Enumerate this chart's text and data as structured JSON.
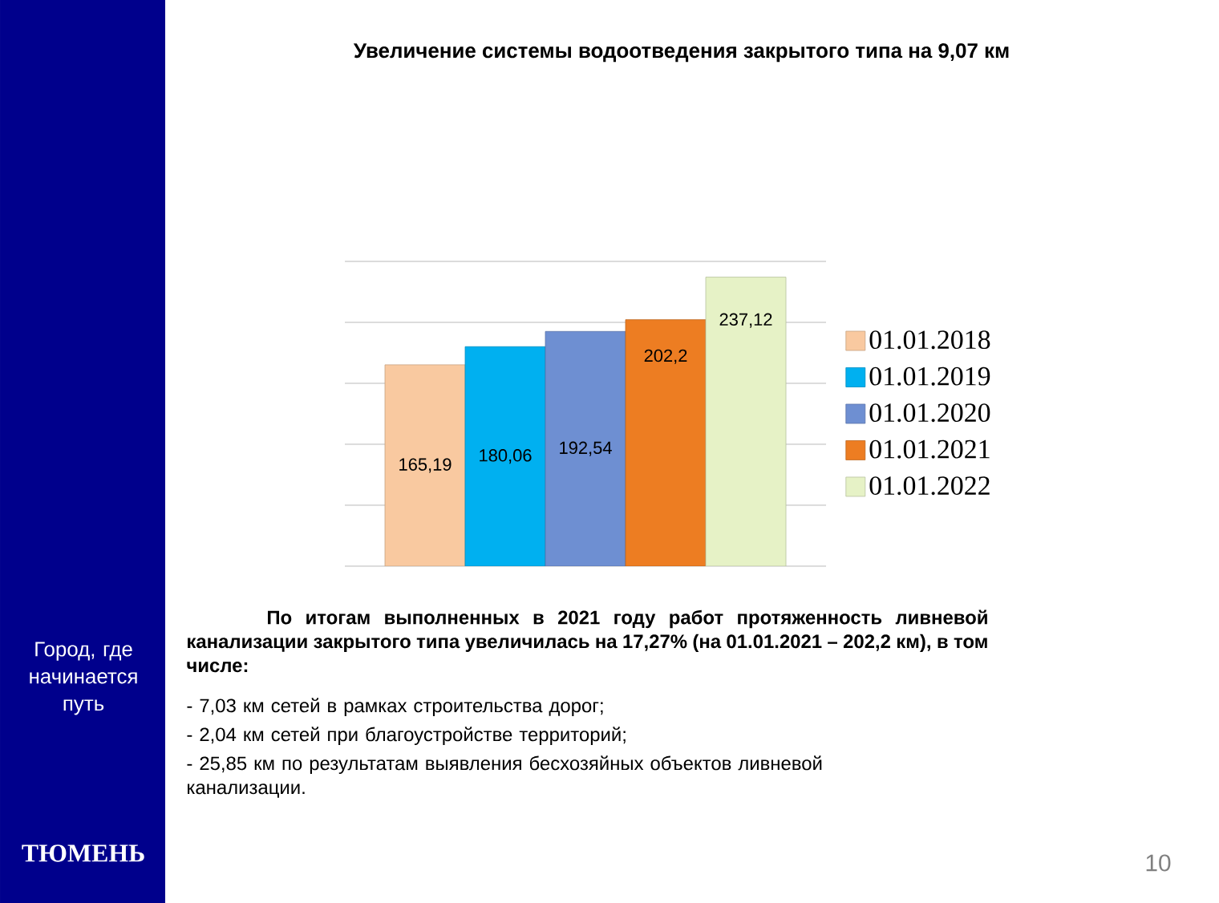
{
  "chart_data": {
    "type": "bar",
    "title": "Увеличение системы водоотведения закрытого типа на 9,07 км",
    "categories": [
      null
    ],
    "series": [
      {
        "name": "01.01.2018",
        "color": "#f9c9a0",
        "values": [
          165.19
        ],
        "value_labels": [
          "165,19"
        ]
      },
      {
        "name": "01.01.2019",
        "color": "#00b0f0",
        "values": [
          180.06
        ],
        "value_labels": [
          "180,06"
        ]
      },
      {
        "name": "01.01.2020",
        "color": "#6e8fd2",
        "values": [
          192.54
        ],
        "value_labels": [
          "192,54"
        ]
      },
      {
        "name": "01.01.2021",
        "color": "#ed7d22",
        "values": [
          202.2
        ],
        "value_labels": [
          "202,2"
        ]
      },
      {
        "name": "01.01.2022",
        "color": "#e6f2c6",
        "values": [
          237.12
        ],
        "value_labels": [
          "237,12"
        ]
      }
    ],
    "ylim": [
      0,
      250
    ],
    "yticks": [
      {
        "value": 0,
        "label": null
      },
      {
        "value": 50,
        "label": null
      },
      {
        "value": 100,
        "label": null
      },
      {
        "value": 150,
        "label": null
      },
      {
        "value": 200,
        "label": null
      },
      {
        "value": 250,
        "label": null
      }
    ],
    "grid": "y",
    "legend": "right",
    "annotations": [
      "По итогам выполненных в 2021 году работ протяженность ливневой канализации закрытого типа увеличилась на 17,27% (на 01.01.2021 – 202,2 км), в том числе:",
      "- 7,03 км сетей в рамках строительства дорог;",
      "- 2,04 км сетей при благоустройстве территорий;",
      "- 25,85 км по результатам выявления бесхозяйных объектов ливневой канализации.",
      "Город, где начинается путь",
      "ТЮМЕНЬ",
      "10"
    ]
  }
}
